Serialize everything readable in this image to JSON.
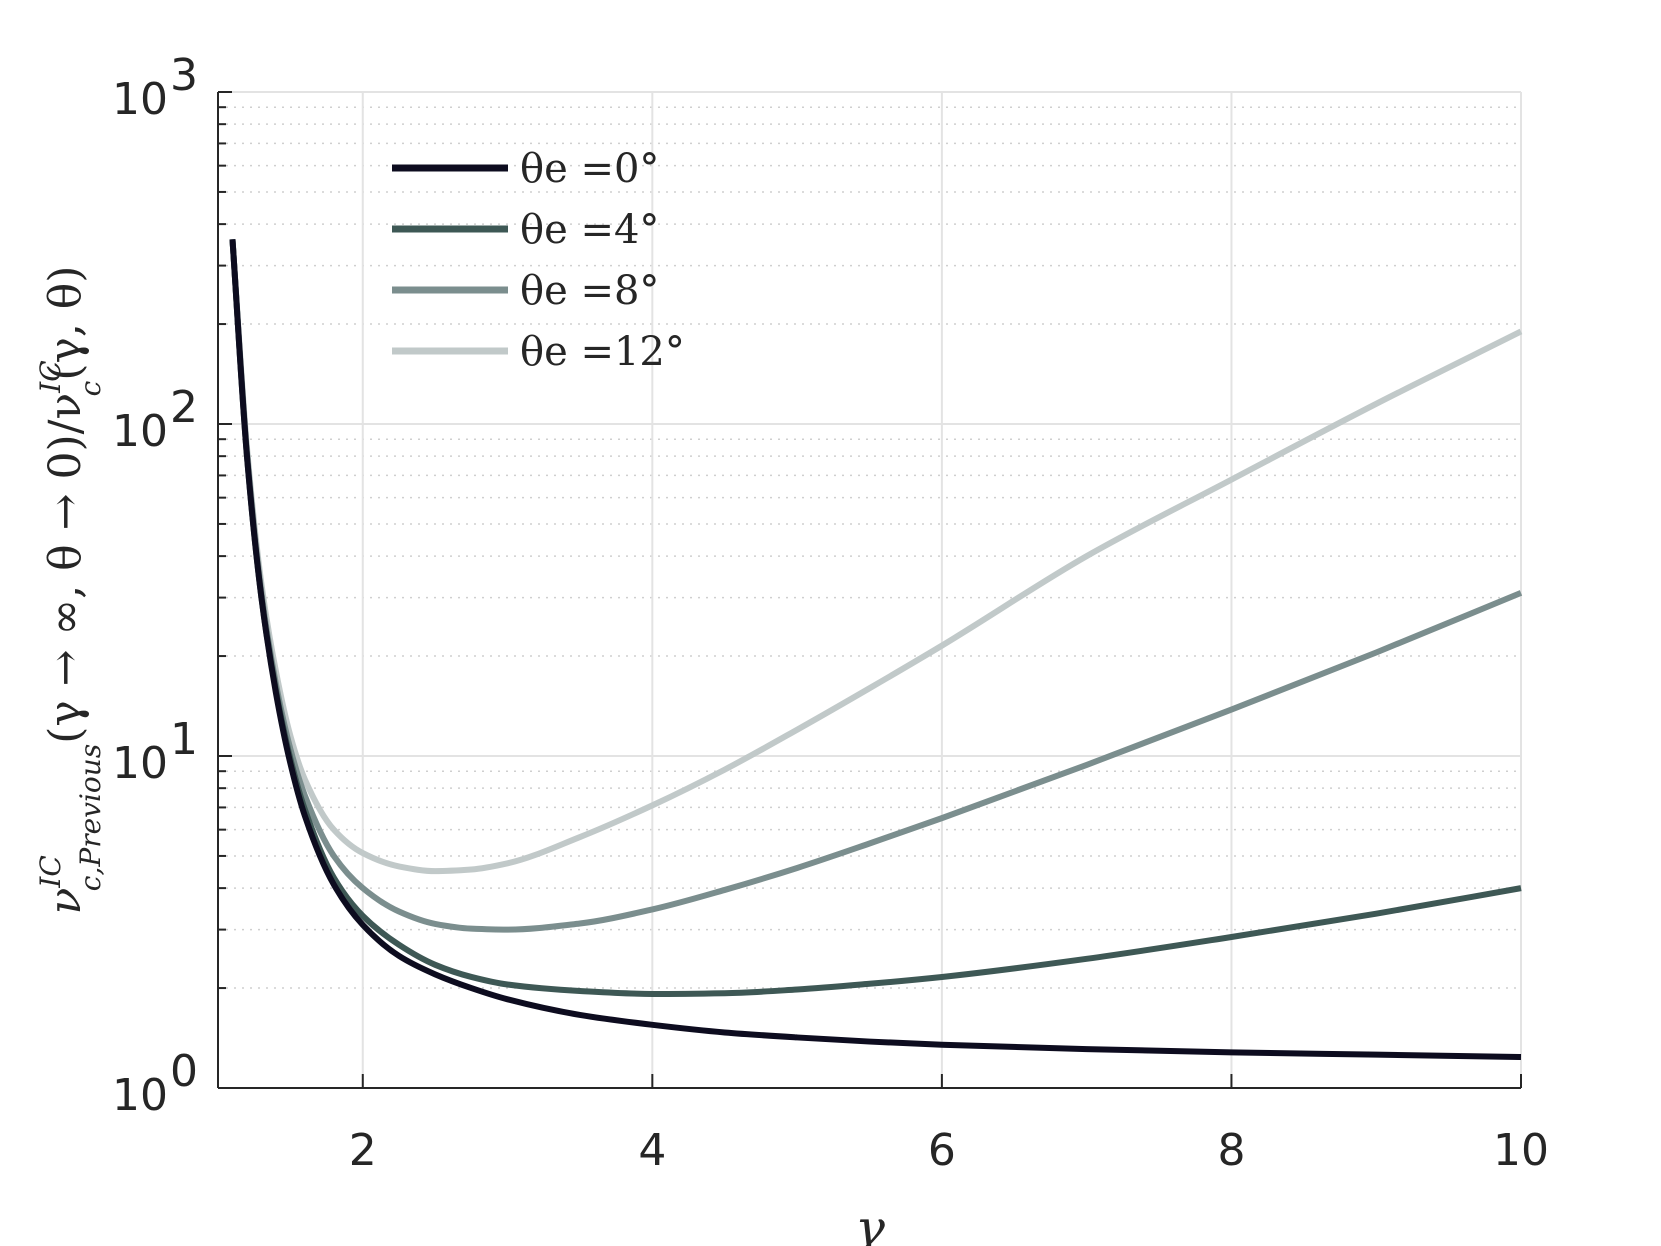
{
  "chart_data": {
    "type": "line",
    "xlabel": "γ",
    "ylabel": {
      "base": "ν",
      "base_sup": "IC",
      "base_sub": "c,Previous",
      "middle": "(γ → ∞, θ → 0)/ν",
      "denom_sup": "IC",
      "denom_sub": "c",
      "tail": "(γ, θ)"
    },
    "xlim": [
      1,
      10
    ],
    "ylim": [
      1,
      1000
    ],
    "yscale": "log",
    "grid": true,
    "legend_position": "top-left",
    "x_ticks": [
      2,
      4,
      6,
      8,
      10
    ],
    "x_tick_labels": [
      "2",
      "4",
      "6",
      "8",
      "10"
    ],
    "y_ticks": [
      1,
      10,
      100,
      1000
    ],
    "y_tick_labels": [
      {
        "base": "10",
        "exp": "0"
      },
      {
        "base": "10",
        "exp": "1"
      },
      {
        "base": "10",
        "exp": "2"
      },
      {
        "base": "10",
        "exp": "3"
      }
    ],
    "series": [
      {
        "name": "θe =0°",
        "color": "#0d0c1f",
        "x": [
          1.1,
          1.2,
          1.3,
          1.4,
          1.5,
          1.6,
          1.8,
          2.0,
          2.25,
          2.5,
          2.75,
          3.0,
          3.5,
          4.0,
          4.5,
          5.0,
          5.5,
          6.0,
          7.0,
          8.0,
          9.0,
          10.0
        ],
        "y": [
          360,
          80,
          30,
          15.5,
          9.5,
          6.6,
          4.1,
          3.1,
          2.5,
          2.2,
          2.0,
          1.85,
          1.66,
          1.55,
          1.47,
          1.42,
          1.38,
          1.35,
          1.31,
          1.28,
          1.26,
          1.24
        ]
      },
      {
        "name": "θe =4°",
        "color": "#3e5855",
        "x": [
          1.1,
          1.2,
          1.3,
          1.4,
          1.5,
          1.6,
          1.8,
          2.0,
          2.25,
          2.5,
          2.75,
          3.0,
          3.5,
          4.0,
          4.5,
          5.0,
          5.5,
          6.0,
          7.0,
          8.0,
          9.0,
          10.0
        ],
        "y": [
          360,
          80,
          30,
          15.8,
          9.8,
          6.9,
          4.3,
          3.3,
          2.7,
          2.35,
          2.16,
          2.05,
          1.96,
          1.92,
          1.93,
          1.98,
          2.06,
          2.16,
          2.45,
          2.85,
          3.35,
          4.0
        ]
      },
      {
        "name": "θe =8°",
        "color": "#7b8e8e",
        "x": [
          1.1,
          1.2,
          1.3,
          1.4,
          1.5,
          1.6,
          1.8,
          2.0,
          2.25,
          2.5,
          2.75,
          3.0,
          3.5,
          4.0,
          4.5,
          5.0,
          5.5,
          6.0,
          7.0,
          8.0,
          9.0,
          10.0
        ],
        "y": [
          360,
          82,
          31,
          16.5,
          10.5,
          7.6,
          5.0,
          4.0,
          3.4,
          3.12,
          3.02,
          3.0,
          3.13,
          3.45,
          3.95,
          4.6,
          5.45,
          6.5,
          9.4,
          13.8,
          20.5,
          31.0
        ]
      },
      {
        "name": "θe =12°",
        "color": "#c1c9c9",
        "x": [
          1.1,
          1.2,
          1.3,
          1.4,
          1.5,
          1.6,
          1.8,
          2.0,
          2.25,
          2.5,
          2.75,
          3.0,
          3.5,
          4.0,
          4.5,
          5.0,
          5.5,
          6.0,
          7.0,
          8.0,
          9.0,
          10.0
        ],
        "y": [
          360,
          85,
          33,
          18,
          11.5,
          8.5,
          6.0,
          5.1,
          4.65,
          4.5,
          4.55,
          4.75,
          5.7,
          7.1,
          9.1,
          12.0,
          16.0,
          21.5,
          40.0,
          68.0,
          115.0,
          190.0
        ]
      }
    ]
  }
}
